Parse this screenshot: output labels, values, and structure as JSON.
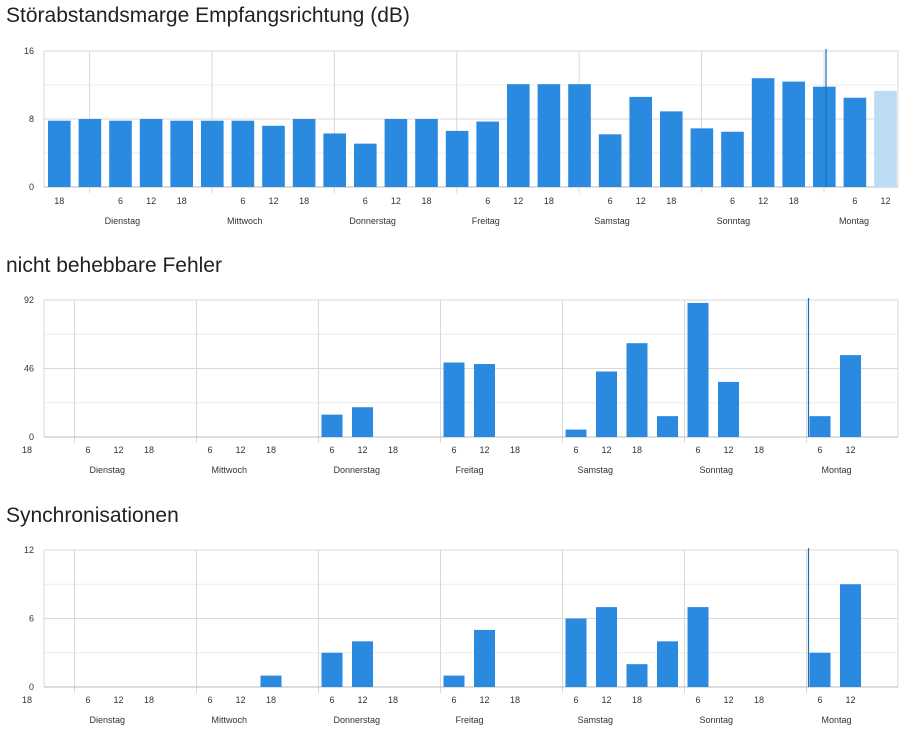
{
  "colors": {
    "bar": "#2a8ae0",
    "bar_current": "#bcdcf4",
    "grid": "#d9d9d9",
    "axis": "#bbbbbb",
    "now_line": "#1a6fb5",
    "text": "#333333"
  },
  "chart_data": [
    {
      "type": "bar",
      "title": "Störabstandsmarge Empfangsrichtung (dB)",
      "y_ticks": [
        "0",
        "8",
        "16"
      ],
      "ylim": [
        0,
        16
      ],
      "hour_labels": [
        "18",
        "",
        "6",
        "12",
        "18",
        "",
        "6",
        "12",
        "18",
        "",
        "6",
        "12",
        "18",
        "",
        "6",
        "12",
        "18",
        "",
        "6",
        "12",
        "18",
        "",
        "6",
        "12",
        "18",
        "",
        "6",
        "12"
      ],
      "day_labels": [
        "Dienstag",
        "Mittwoch",
        "Donnerstag",
        "Freitag",
        "Samstag",
        "Sonntag",
        "Montag"
      ],
      "values": [
        7.8,
        8.0,
        7.8,
        8.0,
        7.8,
        7.8,
        7.8,
        7.2,
        8.0,
        6.3,
        5.1,
        8.0,
        8.0,
        6.6,
        7.7,
        12.1,
        12.1,
        12.1,
        6.2,
        10.6,
        8.9,
        6.9,
        6.5,
        12.8,
        12.4,
        11.8,
        10.5,
        11.3
      ],
      "current_index": 27,
      "now_slot": 25
    },
    {
      "type": "bar",
      "title": "nicht behebbare Fehler",
      "y_ticks": [
        "0",
        "46",
        "92"
      ],
      "ylim": [
        0,
        92
      ],
      "hour_labels": [
        "18",
        "",
        "6",
        "12",
        "18",
        "",
        "6",
        "12",
        "18",
        "",
        "6",
        "12",
        "18",
        "",
        "6",
        "12",
        "18",
        "",
        "6",
        "12",
        "18",
        "",
        "6",
        "12",
        "18",
        "",
        "6",
        "12"
      ],
      "day_labels": [
        "Dienstag",
        "Mittwoch",
        "Donnerstag",
        "Freitag",
        "Samstag",
        "Sonntag",
        "Montag"
      ],
      "values": [
        0,
        0,
        0,
        0,
        0,
        0,
        0,
        0,
        0,
        15,
        20,
        0,
        0,
        50,
        49,
        0,
        0,
        5,
        44,
        63,
        14,
        90,
        37,
        0,
        0,
        14,
        55,
        0
      ],
      "current_index": -1,
      "now_slot": 25
    },
    {
      "type": "bar",
      "title": "Synchronisationen",
      "y_ticks": [
        "0",
        "6",
        "12"
      ],
      "ylim": [
        0,
        12
      ],
      "hour_labels": [
        "18",
        "",
        "6",
        "12",
        "18",
        "",
        "6",
        "12",
        "18",
        "",
        "6",
        "12",
        "18",
        "",
        "6",
        "12",
        "18",
        "",
        "6",
        "12",
        "18",
        "",
        "6",
        "12",
        "18",
        "",
        "6",
        "12"
      ],
      "day_labels": [
        "Dienstag",
        "Mittwoch",
        "Donnerstag",
        "Freitag",
        "Samstag",
        "Sonntag",
        "Montag"
      ],
      "values": [
        0,
        0,
        0,
        0,
        0,
        0,
        0,
        1,
        0,
        3,
        4,
        0,
        0,
        1,
        5,
        0,
        0,
        6,
        7,
        2,
        4,
        7,
        0,
        0,
        0,
        3,
        9,
        0
      ],
      "current_index": -1,
      "now_slot": 25
    }
  ]
}
